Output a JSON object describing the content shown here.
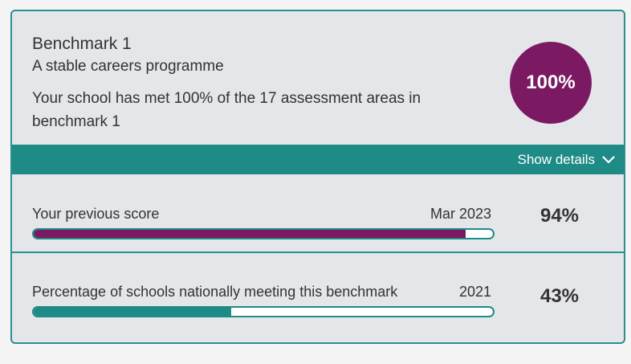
{
  "benchmark": {
    "title": "Benchmark 1",
    "subtitle": "A stable careers programme",
    "description": "Your school has met 100% of the 17 assessment areas in benchmark 1",
    "score": "100%",
    "score_color": "#7b1a63"
  },
  "details": {
    "label": "Show details",
    "icon": "chevron-down-icon",
    "bar_color": "#1e8b86"
  },
  "rows": [
    {
      "label": "Your previous score",
      "date": "Mar 2023",
      "value": "94%",
      "fraction": 0.94,
      "fill_color": "#7b1a63"
    },
    {
      "label": "Percentage of schools nationally meeting this benchmark",
      "date": "2021",
      "value": "43%",
      "fraction": 0.43,
      "fill_color": "#1e8b86"
    }
  ]
}
